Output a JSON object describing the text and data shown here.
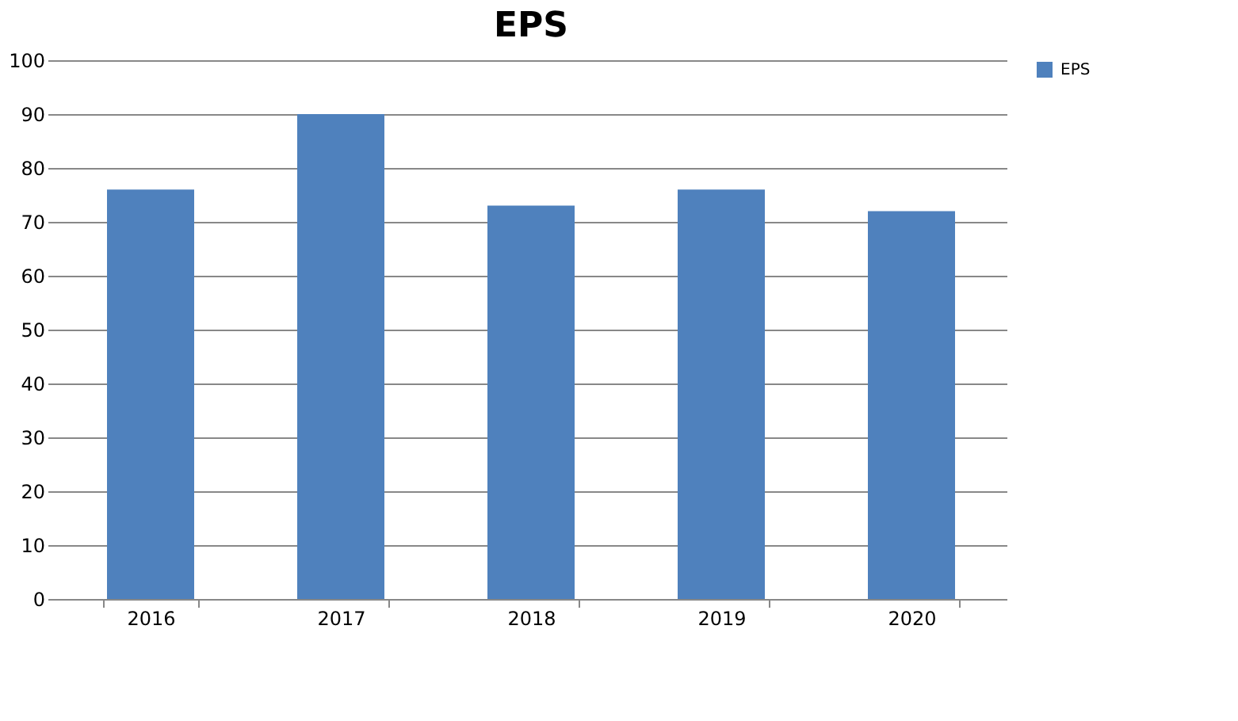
{
  "chart_data": {
    "type": "bar",
    "title": "EPS",
    "categories": [
      "2016",
      "2017",
      "2018",
      "2019",
      "2020"
    ],
    "series": [
      {
        "name": "EPS",
        "color": "#4f81bd",
        "values": [
          76,
          90,
          73,
          76,
          72
        ]
      }
    ],
    "ylim": [
      0,
      100
    ],
    "yticks": [
      0,
      10,
      20,
      30,
      40,
      50,
      60,
      70,
      80,
      90,
      100
    ],
    "grid": "y",
    "legend": "right"
  }
}
